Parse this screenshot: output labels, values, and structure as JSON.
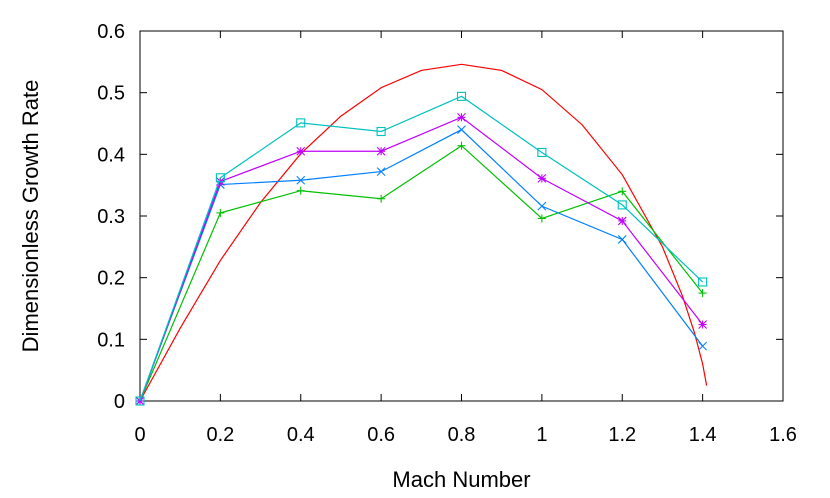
{
  "chart_data": {
    "type": "line",
    "title": "",
    "xlabel": "Mach Number",
    "ylabel": "Dimensionless Growth Rate",
    "xlim": [
      0,
      1.6
    ],
    "ylim": [
      0,
      0.6
    ],
    "xticks": [
      "0",
      "0.2",
      "0.4",
      "0.6",
      "0.8",
      "1",
      "1.2",
      "1.4",
      "1.6"
    ],
    "yticks": [
      "0",
      "0.1",
      "0.2",
      "0.3",
      "0.4",
      "0.5",
      "0.6"
    ],
    "grid": false,
    "legend": "none",
    "x": [
      0,
      0.2,
      0.4,
      0.6,
      0.8,
      1.0,
      1.2,
      1.4
    ],
    "series": [
      {
        "color": "#00c000",
        "marker": "plus",
        "values": [
          0,
          0.305,
          0.341,
          0.328,
          0.414,
          0.296,
          0.34,
          0.175
        ]
      },
      {
        "color": "#0080ff",
        "marker": "cross",
        "values": [
          0,
          0.351,
          0.358,
          0.372,
          0.44,
          0.316,
          0.262,
          0.089
        ]
      },
      {
        "color": "#c000ff",
        "marker": "star",
        "values": [
          0,
          0.356,
          0.405,
          0.405,
          0.46,
          0.361,
          0.292,
          0.124
        ]
      },
      {
        "color": "#00c0c0",
        "marker": "square",
        "values": [
          0,
          0.362,
          0.451,
          0.437,
          0.494,
          0.403,
          0.318,
          0.193
        ]
      }
    ],
    "curve": {
      "color": "#ff0000",
      "x": [
        0,
        0.1,
        0.2,
        0.3,
        0.4,
        0.5,
        0.6,
        0.7,
        0.8,
        0.9,
        1.0,
        1.1,
        1.2,
        1.3,
        1.35,
        1.38,
        1.4,
        1.41
      ],
      "y": [
        0,
        0.118,
        0.228,
        0.322,
        0.401,
        0.462,
        0.508,
        0.536,
        0.546,
        0.536,
        0.505,
        0.448,
        0.367,
        0.25,
        0.17,
        0.11,
        0.06,
        0.025
      ]
    }
  }
}
